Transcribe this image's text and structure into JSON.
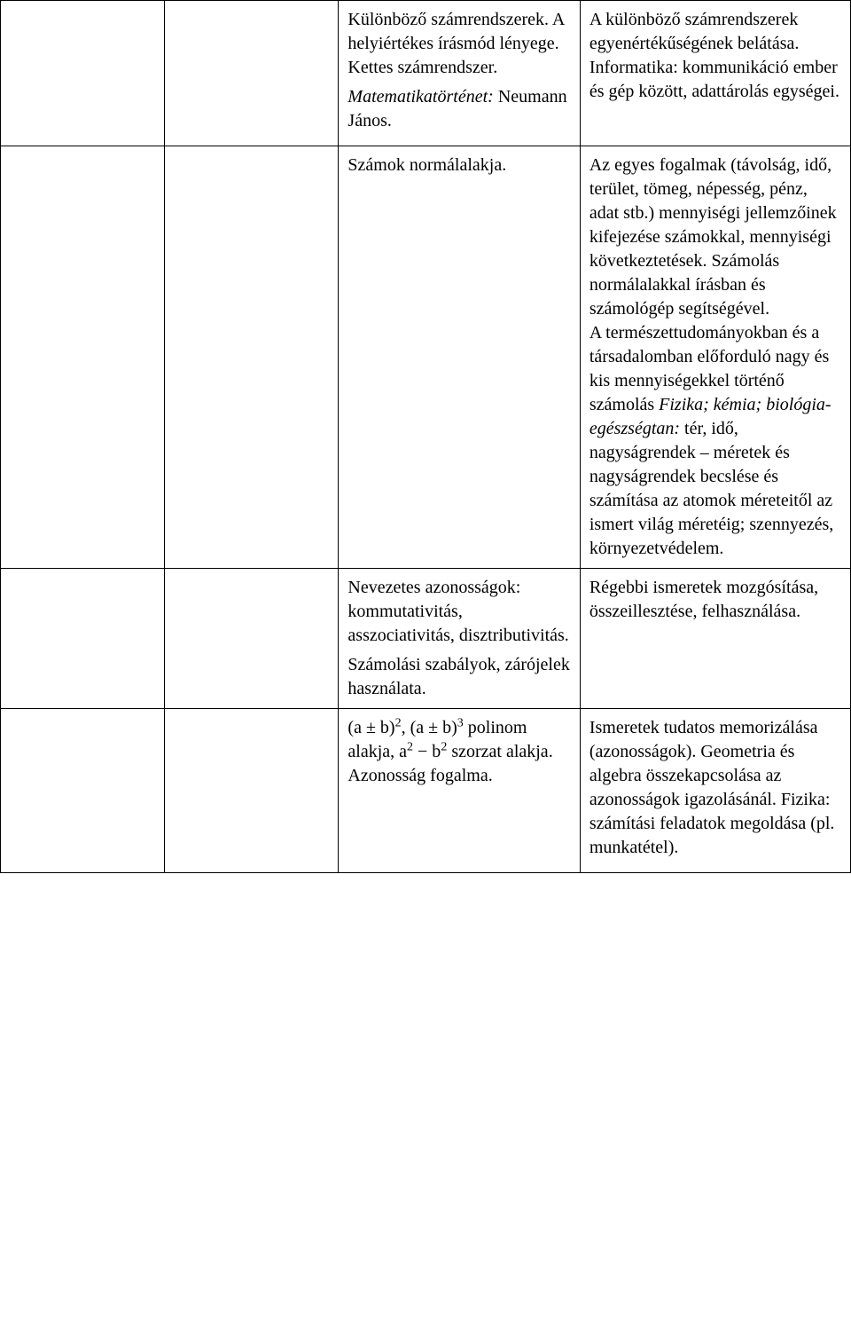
{
  "table": {
    "rows": [
      {
        "c1": "",
        "c2": "",
        "c3": {
          "p1": "Különböző számrendszerek. A helyiértékes írásmód lényege. Kettes számrendszer.",
          "p2_ital": "Matematikatörténet:",
          "p2_rest": " Neumann János."
        },
        "c4": {
          "p1": "A különböző számrendszerek egyenértékűségének belátása. Informatika: kommunikáció ember és gép között, adattárolás egységei."
        }
      },
      {
        "c1": "",
        "c2": "",
        "c3": {
          "p1": "Számok normálalakja."
        },
        "c4": {
          "p1": "Az egyes fogalmak (távolság, idő, terület, tömeg, népesség, pénz, adat stb.) mennyiségi jellemzőinek kifejezése számokkal, mennyiségi következtetések. Számolás normálalakkal írásban és számológép segítségével.",
          "p2_a": "A természettudományokban és a társadalomban előforduló nagy és kis mennyiségekkel történő számolás ",
          "p2_ital": "Fizika; kémia; biológia-egészségtan:",
          "p2_b": " tér, idő, nagyságrendek – méretek és nagyságrendek becslése és számítása az atomok méreteitől az ismert világ méretéig; szennyezés, környezetvédelem."
        }
      },
      {
        "c1": "",
        "c2": "",
        "c3": {
          "p1": "Nevezetes azonosságok: kommutativitás, asszociativitás, disztributivitás.",
          "p2": "Számolási szabályok, zárójelek használata."
        },
        "c4": {
          "p1": "Régebbi ismeretek mozgósítása, összeillesztése, felhasználása."
        }
      },
      {
        "c1": "",
        "c2": "",
        "c3": {
          "formula": {
            "a": "(a ± b)",
            "sup2": "2",
            "mid1": ", (a ± b)",
            "sup3": "3",
            "mid2": " polinom alakja,  a",
            "sup2b": "2",
            "mid3": " − b",
            "sup2c": "2",
            "mid4": "  szorzat alakja. Azonosság fogalma."
          }
        },
        "c4": {
          "p1": "Ismeretek tudatos memorizálása (azonosságok). Geometria és algebra összekapcsolása az azonosságok igazolásánál. Fizika: számítási feladatok megoldása (pl. munkatétel)."
        }
      }
    ]
  }
}
